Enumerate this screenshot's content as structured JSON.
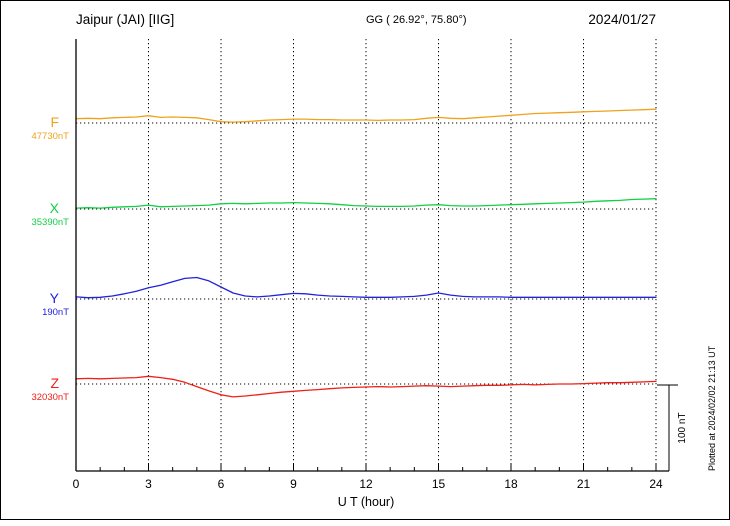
{
  "header": {
    "station": "Jaipur (JAI)  [IIG]",
    "coords": "GG ( 26.92°, 75.80°)",
    "date": "2024/01/27"
  },
  "axis": {
    "xlabel": "U T (hour)",
    "tick_hours": [
      0,
      3,
      6,
      9,
      12,
      15,
      18,
      21,
      24
    ],
    "xmin_hour": 0,
    "xmax_hour": 24
  },
  "scale_bar": {
    "label": "100 nT",
    "nT": 100
  },
  "side_note": "Plotted at 2024/02/02 21:13 UT",
  "chart_data": {
    "type": "line",
    "title": "Jaipur (JAI) [IIG] magnetogram 2024/01/27",
    "xlabel": "U T (hour)",
    "x_start_hour": 0,
    "x_step_hours": 0.5,
    "x_range_hours": [
      0,
      24
    ],
    "grid": "vertical dotted every 3 h; dotted horizontal baseline per component",
    "legend_position": "left of each trace",
    "series": [
      {
        "component": "F",
        "baseline_value_label": "47730nT",
        "baseline_nT": 47730,
        "color": "#f0a21c",
        "offsets_nT": [
          5,
          5.5,
          5,
          6,
          6.5,
          7,
          8.5,
          6.5,
          7,
          6.5,
          6,
          4,
          1.5,
          1,
          1.5,
          2.5,
          3.5,
          4,
          4.5,
          4.5,
          4,
          4,
          3.5,
          3.5,
          3.5,
          3,
          3.5,
          3.5,
          4,
          5.5,
          6.5,
          5.5,
          5,
          6,
          7,
          8,
          9,
          10,
          11,
          11.5,
          12,
          12.5,
          13,
          13.5,
          14,
          14.5,
          15,
          15.5,
          16
        ]
      },
      {
        "component": "X",
        "baseline_value_label": "35390nT",
        "baseline_nT": 35390,
        "color": "#12cf46",
        "offsets_nT": [
          1,
          1.5,
          1,
          2,
          2.5,
          3,
          4.5,
          2.5,
          3,
          3.5,
          4,
          4.5,
          6,
          6.5,
          6,
          6.5,
          7,
          7,
          7.5,
          7,
          6.5,
          6,
          5,
          4,
          3.5,
          3,
          3,
          3,
          3.5,
          4.5,
          5,
          4,
          3.5,
          3.5,
          4,
          4.5,
          5,
          5.5,
          6,
          6.5,
          7,
          7.5,
          8,
          9,
          9.5,
          10,
          11,
          11.5,
          12
        ]
      },
      {
        "component": "Y",
        "baseline_value_label": "190nT",
        "baseline_nT": 190,
        "color": "#2222dd",
        "offsets_nT": [
          2.5,
          1.5,
          2,
          3.5,
          6,
          9,
          13,
          16,
          20,
          24,
          25,
          21,
          14,
          7,
          3.5,
          2.5,
          3.5,
          5,
          6.5,
          6,
          4.5,
          3.5,
          3,
          2.5,
          2,
          2,
          2,
          2.5,
          3,
          4.5,
          7,
          4.5,
          3,
          2.5,
          2.5,
          2.5,
          2,
          2,
          2,
          2,
          2,
          2,
          2,
          2,
          2,
          2,
          2,
          2,
          2
        ]
      },
      {
        "component": "Z",
        "baseline_value_label": "32030nT",
        "baseline_nT": 32030,
        "color": "#ef2017",
        "offsets_nT": [
          6,
          6.5,
          6,
          6.5,
          7,
          7.5,
          9,
          7.5,
          5.5,
          2,
          -3,
          -8,
          -12.5,
          -15,
          -14,
          -12.5,
          -11,
          -9.5,
          -8.5,
          -7.5,
          -6.5,
          -5.5,
          -4.5,
          -4,
          -3.5,
          -3,
          -3.5,
          -3,
          -2.5,
          -2,
          -2.5,
          -3,
          -2.5,
          -2,
          -1.5,
          -1.5,
          -1,
          -0.5,
          -1,
          -0.5,
          0,
          0,
          0.5,
          1,
          1.5,
          1.5,
          2,
          2.5,
          3
        ]
      }
    ]
  }
}
